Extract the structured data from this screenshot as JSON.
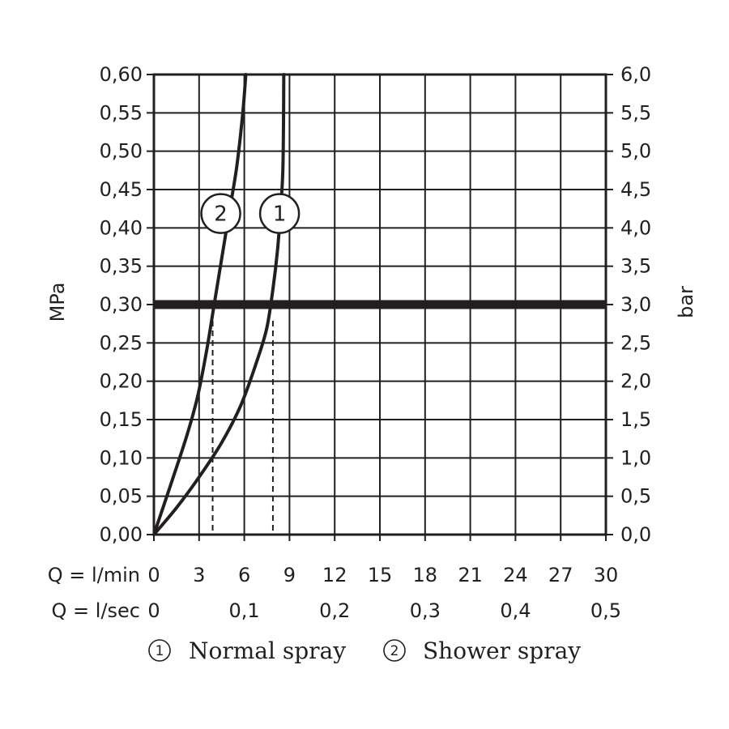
{
  "chart_data": {
    "type": "line",
    "xlabel_rows": [
      {
        "label": "Q = l/min",
        "ticks": [
          "0",
          "3",
          "6",
          "9",
          "12",
          "15",
          "18",
          "21",
          "24",
          "27",
          "30"
        ],
        "tick_values": [
          0,
          3,
          6,
          9,
          12,
          15,
          18,
          21,
          24,
          27,
          30
        ]
      },
      {
        "label": "Q = l/sec",
        "ticks": [
          "0",
          "0,1",
          "0,2",
          "0,3",
          "0,4",
          "0,5"
        ],
        "tick_values": [
          0,
          6,
          12,
          18,
          24,
          30
        ]
      }
    ],
    "ylabel_left": "MPa",
    "ylabel_right": "bar",
    "xlim": [
      0,
      30
    ],
    "ylim": [
      0,
      0.6
    ],
    "y_ticks_left": [
      "0,00",
      "0,05",
      "0,10",
      "0,15",
      "0,20",
      "0,25",
      "0,30",
      "0,35",
      "0,40",
      "0,45",
      "0,50",
      "0,55",
      "0,60"
    ],
    "y_ticks_right": [
      "0,0",
      "0,5",
      "1,0",
      "1,5",
      "2,0",
      "2,5",
      "3,0",
      "3,5",
      "4,0",
      "4,5",
      "5,0",
      "5,5",
      "6,0"
    ],
    "grid": true,
    "reference_line": {
      "y": 0.3
    },
    "series": [
      {
        "marker": "1",
        "x": [
          0,
          1.5,
          3,
          4.5,
          5.8,
          6.9,
          7.5,
          7.9,
          8.2,
          8.4,
          8.55,
          8.6,
          8.62
        ],
        "y": [
          0,
          0.035,
          0.075,
          0.12,
          0.17,
          0.23,
          0.27,
          0.32,
          0.37,
          0.42,
          0.47,
          0.53,
          0.6
        ],
        "dropline_x": 7.9
      },
      {
        "marker": "2",
        "x": [
          0,
          1.2,
          2.2,
          2.9,
          3.5,
          4.0,
          4.5,
          5.0,
          5.5,
          5.9,
          6.1
        ],
        "y": [
          0,
          0.07,
          0.13,
          0.18,
          0.24,
          0.3,
          0.36,
          0.42,
          0.48,
          0.55,
          0.6
        ],
        "dropline_x": 3.9
      }
    ],
    "legend": [
      {
        "marker": "1",
        "label": "Normal spray"
      },
      {
        "marker": "2",
        "label": "Shower spray"
      }
    ],
    "legend_position": "bottom",
    "marker_labels": [
      {
        "marker": "1",
        "x": 8.5,
        "y": 0.425
      },
      {
        "marker": "2",
        "x": 4.6,
        "y": 0.425
      }
    ]
  }
}
